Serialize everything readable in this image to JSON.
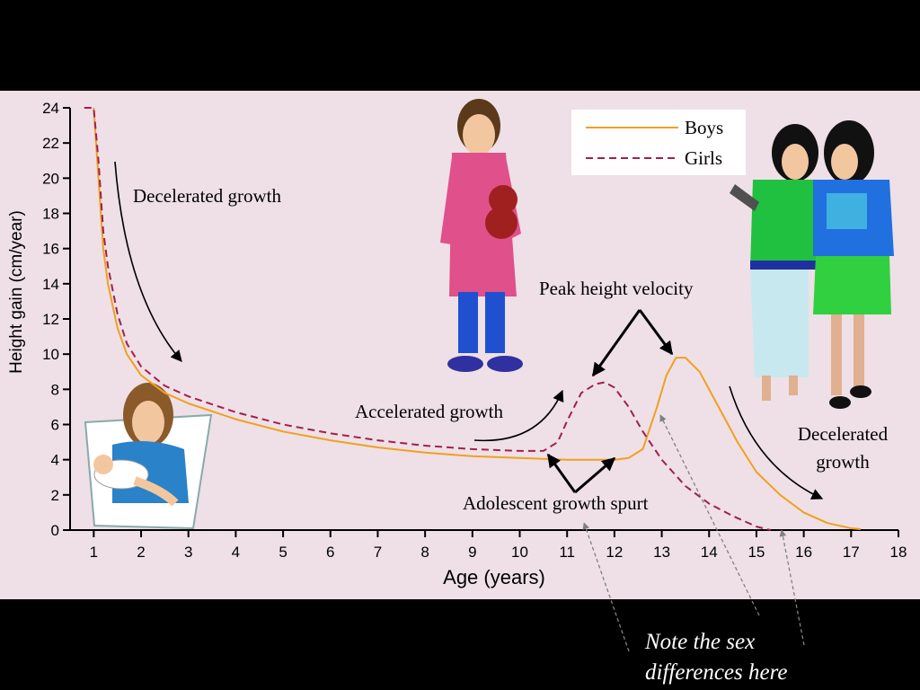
{
  "colors": {
    "background": "#000000",
    "plot_bg": "#eee0e6",
    "boys": "#f0a020",
    "girls": "#a0204c",
    "arrow": "#000000",
    "note_arrow": "#808080",
    "note_text": "#ffffff"
  },
  "chart_data": {
    "type": "line",
    "xlabel": "Age (years)",
    "ylabel": "Height gain (cm/year)",
    "xlim": [
      0.5,
      18
    ],
    "ylim": [
      0,
      24
    ],
    "xticks": [
      "1",
      "2",
      "3",
      "4",
      "5",
      "6",
      "7",
      "8",
      "9",
      "10",
      "11",
      "12",
      "13",
      "14",
      "15",
      "16",
      "17",
      "18"
    ],
    "yticks": [
      "0",
      "2",
      "4",
      "6",
      "8",
      "10",
      "12",
      "14",
      "16",
      "18",
      "20",
      "22",
      "24"
    ],
    "grid": false,
    "legend_position": "top-right",
    "series": [
      {
        "name": "Boys",
        "color": "#f0a020",
        "dash": "solid",
        "x": [
          1.0,
          1.1,
          1.2,
          1.3,
          1.5,
          1.7,
          2.0,
          2.5,
          3.0,
          4.0,
          5.0,
          6.0,
          7.0,
          8.0,
          9.0,
          10.0,
          11.0,
          11.5,
          12.0,
          12.3,
          12.6,
          12.9,
          13.1,
          13.3,
          13.5,
          13.8,
          14.2,
          14.6,
          15.0,
          15.5,
          16.0,
          16.5,
          17.0,
          17.2
        ],
        "y": [
          24.0,
          20.0,
          16.0,
          14.0,
          11.5,
          10.0,
          8.8,
          7.8,
          7.2,
          6.3,
          5.6,
          5.1,
          4.7,
          4.4,
          4.2,
          4.1,
          4.0,
          4.0,
          4.0,
          4.1,
          4.6,
          7.0,
          8.8,
          9.8,
          9.8,
          9.0,
          7.0,
          5.0,
          3.3,
          2.0,
          1.0,
          0.4,
          0.1,
          0.05
        ]
      },
      {
        "name": "Girls",
        "color": "#a0204c",
        "dash": "dashed",
        "x": [
          0.8,
          1.0,
          1.1,
          1.2,
          1.3,
          1.5,
          1.7,
          2.0,
          2.5,
          3.0,
          4.0,
          5.0,
          6.0,
          7.0,
          8.0,
          9.0,
          10.0,
          10.5,
          10.8,
          11.0,
          11.3,
          11.6,
          11.8,
          12.0,
          12.3,
          12.6,
          13.0,
          13.5,
          14.0,
          14.5,
          15.0,
          15.3
        ],
        "y": [
          24.0,
          24.0,
          21.0,
          17.0,
          15.0,
          12.3,
          10.6,
          9.3,
          8.2,
          7.6,
          6.7,
          6.0,
          5.5,
          5.1,
          4.8,
          4.6,
          4.5,
          4.5,
          5.0,
          6.2,
          7.8,
          8.3,
          8.4,
          8.1,
          7.0,
          5.6,
          4.0,
          2.5,
          1.5,
          0.8,
          0.2,
          0.0
        ]
      }
    ],
    "annotations": [
      "Decelerated growth",
      "Accelerated growth",
      "Peak height velocity",
      "Adolescent growth spurt",
      "Decelerated",
      "growth"
    ]
  },
  "legend": {
    "boys": "Boys",
    "girls": "Girls"
  },
  "note": {
    "line1": "Note the sex",
    "line2": "differences here"
  }
}
